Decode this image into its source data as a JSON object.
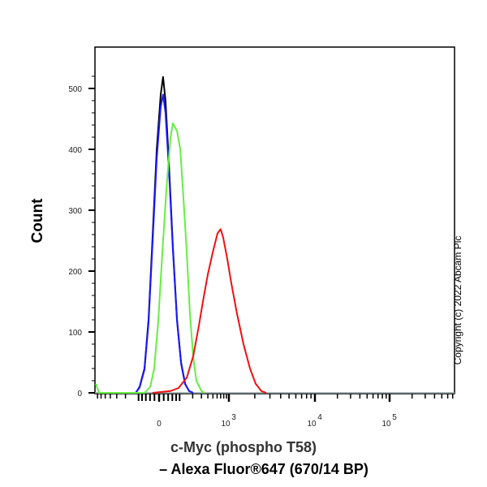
{
  "chart_data": {
    "type": "line",
    "subtype": "flow cytometry histogram overlay",
    "xlabel": [
      "c-Myc (phospho T58)",
      "– Alexa Fluor®647 (670/14 BP)"
    ],
    "ylabel": "Count",
    "x_scale": "biexponential",
    "x_ticks": [
      {
        "value": 0,
        "label": "0"
      },
      {
        "value": 1000,
        "label": "10",
        "exp": "3"
      },
      {
        "value": 10000,
        "label": "10",
        "exp": "4"
      },
      {
        "value": 100000,
        "label": "10",
        "exp": "5"
      }
    ],
    "y_ticks": [
      0,
      100,
      200,
      300,
      400,
      500
    ],
    "ylim": [
      0,
      540
    ],
    "grid": false,
    "legend": "none",
    "series": [
      {
        "color": "#000000",
        "points": [
          [
            -118,
            0
          ],
          [
            -94,
            10
          ],
          [
            -67,
            40
          ],
          [
            -47,
            120
          ],
          [
            -28,
            260
          ],
          [
            -10,
            400
          ],
          [
            7,
            490
          ],
          [
            17,
            519
          ],
          [
            28,
            480
          ],
          [
            43,
            380
          ],
          [
            63,
            240
          ],
          [
            85,
            120
          ],
          [
            109,
            50
          ],
          [
            137,
            15
          ],
          [
            168,
            3
          ],
          [
            205,
            0
          ]
        ]
      },
      {
        "color": "#1a1aff",
        "points": [
          [
            -118,
            0
          ],
          [
            -94,
            9
          ],
          [
            -67,
            38
          ],
          [
            -47,
            115
          ],
          [
            -28,
            250
          ],
          [
            -10,
            385
          ],
          [
            7,
            470
          ],
          [
            17,
            490
          ],
          [
            28,
            460
          ],
          [
            43,
            370
          ],
          [
            63,
            235
          ],
          [
            85,
            118
          ],
          [
            109,
            48
          ],
          [
            137,
            14
          ],
          [
            168,
            3
          ],
          [
            205,
            0
          ]
        ]
      },
      {
        "color": "#66ee44",
        "points": [
          [
            -755,
            15
          ],
          [
            -656,
            0
          ],
          [
            -67,
            0
          ],
          [
            -39,
            10
          ],
          [
            -21,
            40
          ],
          [
            -3,
            120
          ],
          [
            14,
            230
          ],
          [
            31,
            330
          ],
          [
            51,
            420
          ],
          [
            63,
            443
          ],
          [
            85,
            430
          ],
          [
            104,
            400
          ],
          [
            125,
            320
          ],
          [
            149,
            230
          ],
          [
            175,
            130
          ],
          [
            205,
            60
          ],
          [
            238,
            20
          ],
          [
            300,
            3
          ],
          [
            345,
            0
          ]
        ]
      },
      {
        "color": "#ee1111",
        "points": [
          [
            -28,
            0
          ],
          [
            51,
            3
          ],
          [
            94,
            8
          ],
          [
            149,
            25
          ],
          [
            205,
            60
          ],
          [
            267,
            110
          ],
          [
            321,
            150
          ],
          [
            400,
            195
          ],
          [
            494,
            230
          ],
          [
            612,
            262
          ],
          [
            700,
            269
          ],
          [
            782,
            255
          ],
          [
            933,
            220
          ],
          [
            1067,
            180
          ],
          [
            1242,
            130
          ],
          [
            1480,
            80
          ],
          [
            1758,
            40
          ],
          [
            2048,
            15
          ],
          [
            2384,
            3
          ],
          [
            2717,
            0
          ]
        ]
      }
    ]
  },
  "copyright": "Copyright (c) 2022 Abcam Plc"
}
